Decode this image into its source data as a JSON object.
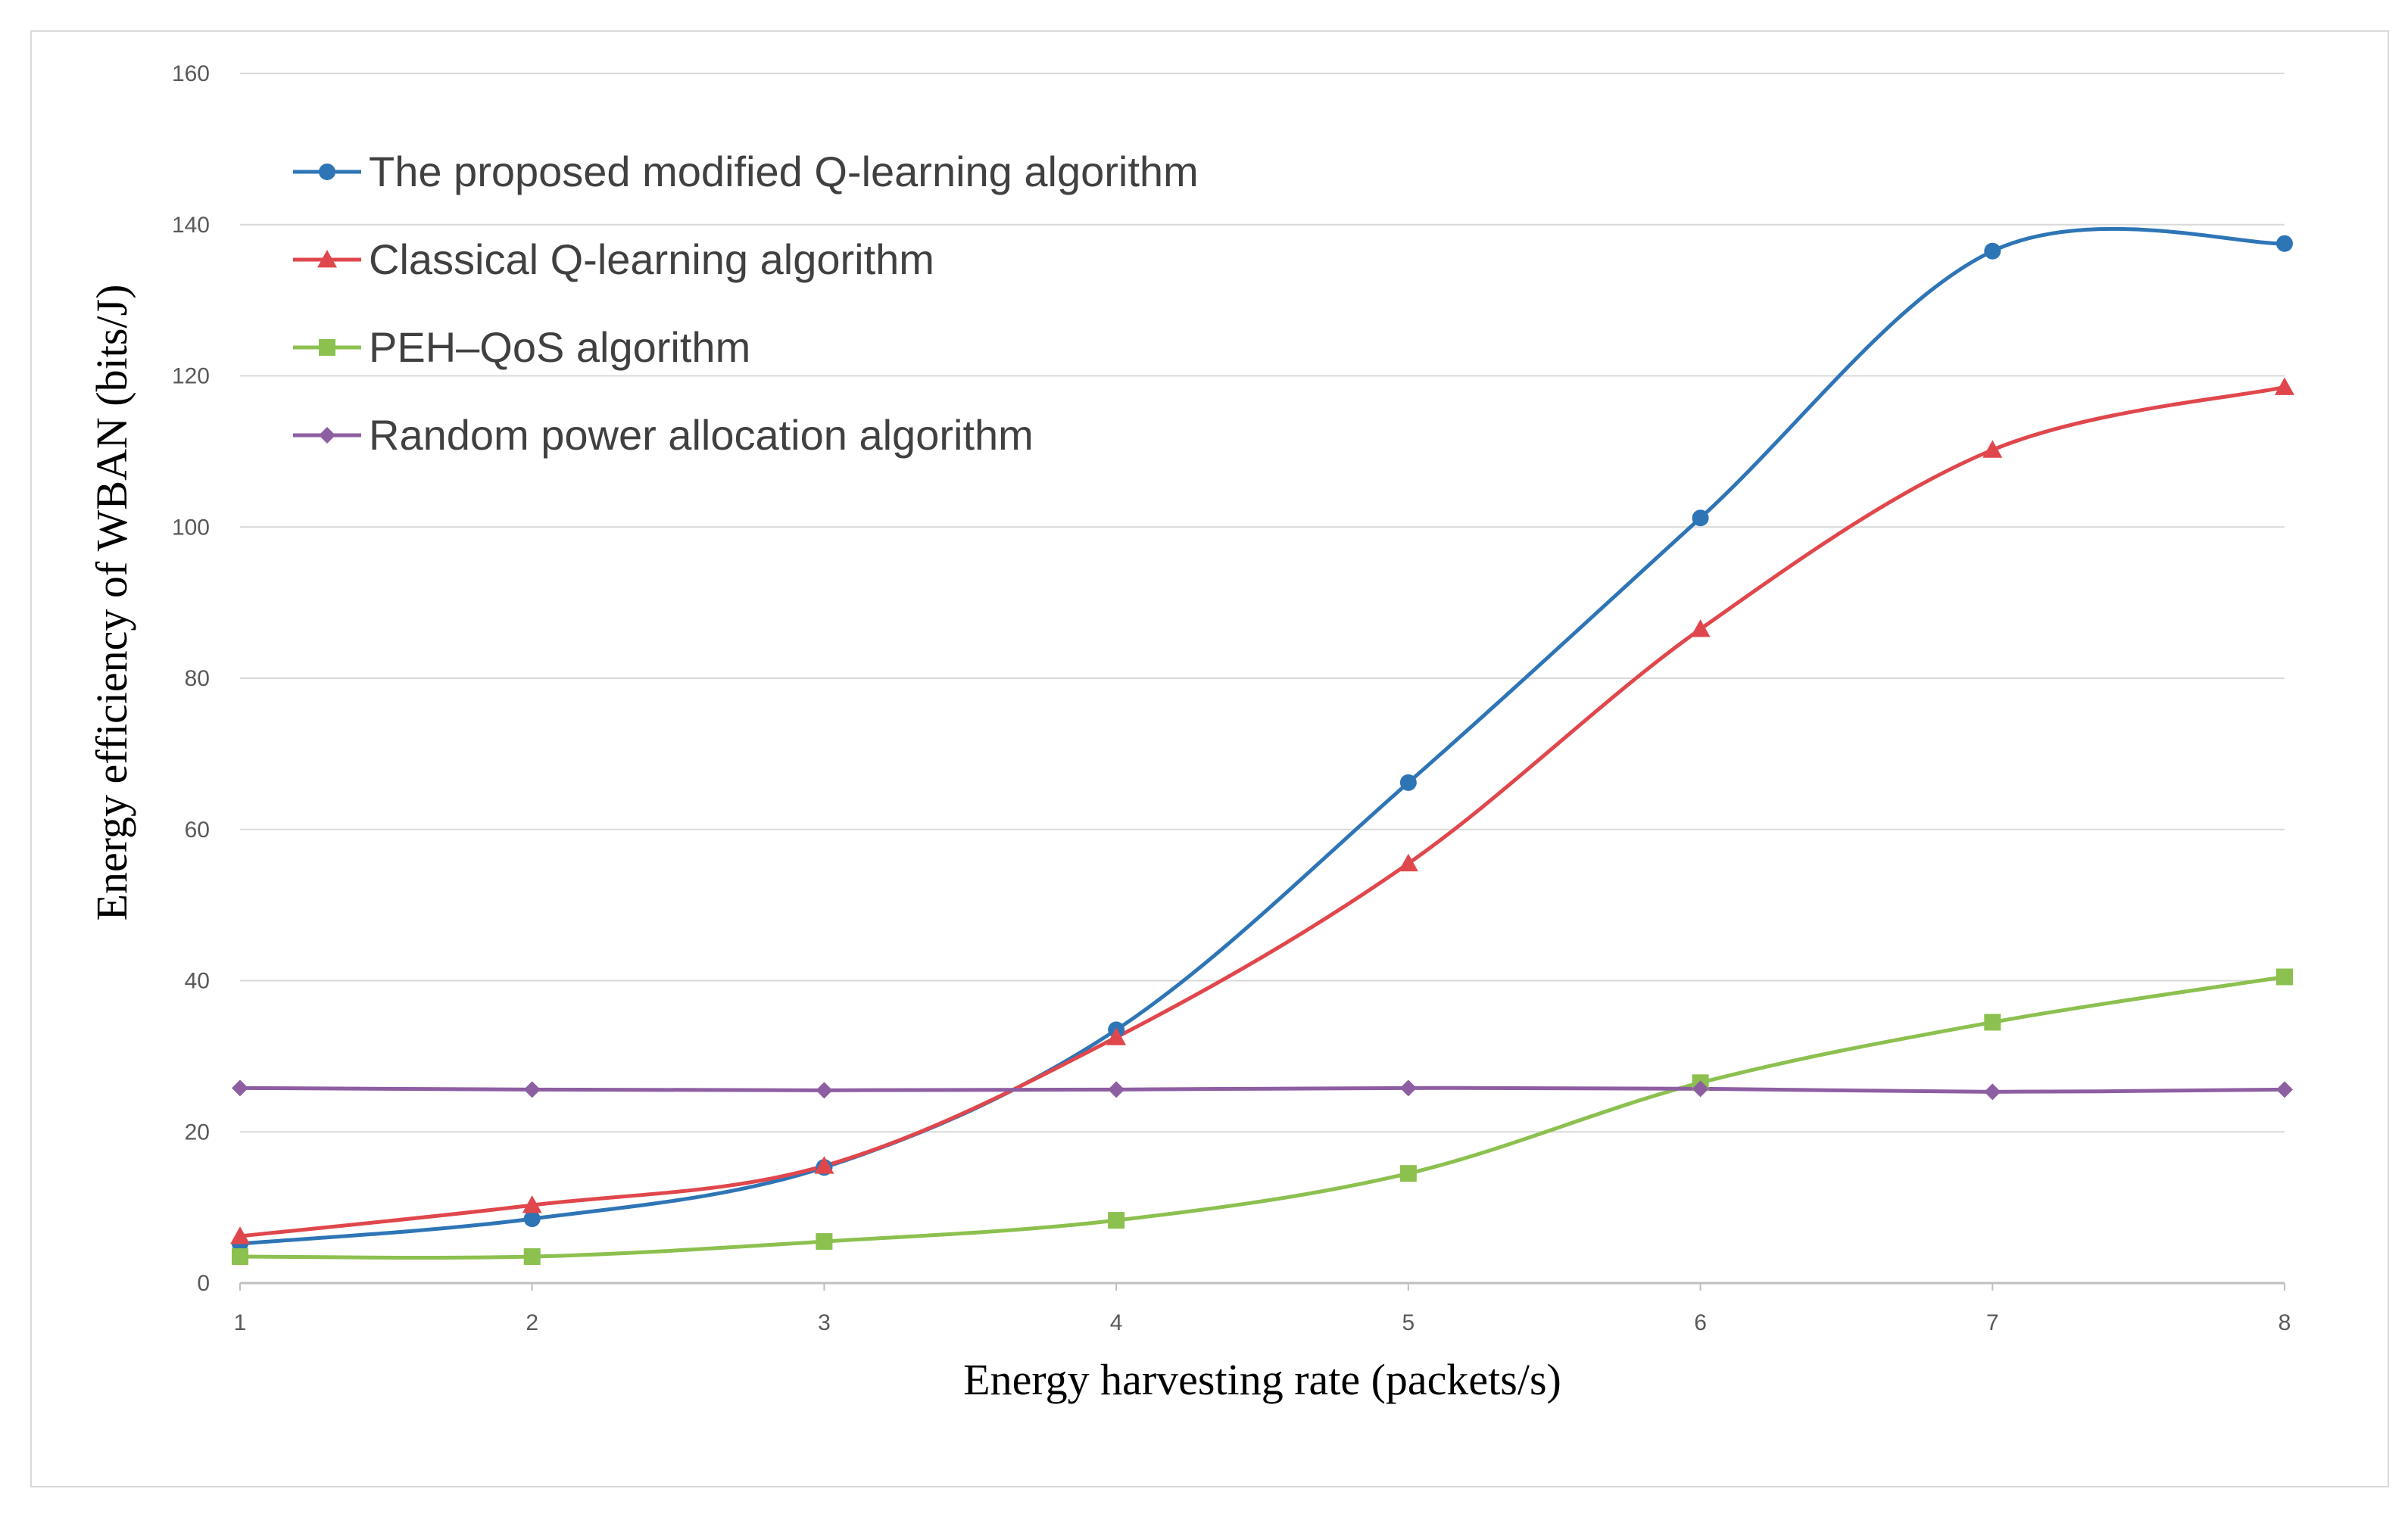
{
  "chart_data": {
    "type": "line",
    "title": "",
    "xlabel": "Energy harvesting rate (packets/s)",
    "ylabel": "Energy efficiency of WBAN (bits/J)",
    "x": [
      1,
      2,
      3,
      4,
      5,
      6,
      7,
      8
    ],
    "xlim": [
      1,
      8
    ],
    "ylim": [
      0,
      160
    ],
    "xticks": [
      "1",
      "2",
      "3",
      "4",
      "5",
      "6",
      "7",
      "8"
    ],
    "yticks": [
      "0",
      "20",
      "40",
      "60",
      "80",
      "100",
      "120",
      "140",
      "160"
    ],
    "grid": "horizontal",
    "legend_position": "top-left",
    "series": [
      {
        "name": "The proposed modified Q-learning algorithm",
        "color": "#2e75b6",
        "marker": "circle",
        "values": [
          5.2,
          8.5,
          15.3,
          33.5,
          66.2,
          101.2,
          136.5,
          137.5
        ]
      },
      {
        "name": "Classical Q-learning algorithm",
        "color": "#e0474c",
        "marker": "triangle",
        "values": [
          6.2,
          10.3,
          15.5,
          32.5,
          55.5,
          86.5,
          110.2,
          118.5
        ]
      },
      {
        "name": "PEH–QoS algorithm",
        "color": "#8cc04f",
        "marker": "square",
        "values": [
          3.5,
          3.5,
          5.5,
          8.3,
          14.5,
          26.5,
          34.5,
          40.5
        ]
      },
      {
        "name": "Random power allocation algorithm",
        "color": "#8e5ea2",
        "marker": "diamond",
        "values": [
          25.8,
          25.6,
          25.5,
          25.6,
          25.8,
          25.7,
          25.3,
          25.6
        ]
      }
    ]
  }
}
